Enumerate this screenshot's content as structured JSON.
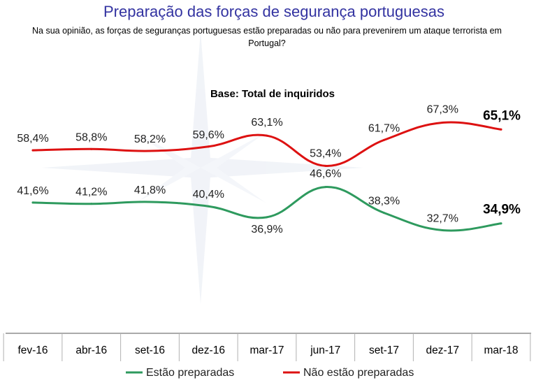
{
  "chart_data": {
    "type": "line",
    "title": "Preparação das forças de segurança portuguesas",
    "subtitle_line1": "Na sua opinião, as forças de seguranças portuguesas estão preparadas ou não para prevenirem um ataque terrorista em",
    "subtitle_line2": "Portugal?",
    "base_label": "Base: Total de inquiridos",
    "categories": [
      "fev-16",
      "abr-16",
      "set-16",
      "dez-16",
      "mar-17",
      "jun-17",
      "set-17",
      "dez-17",
      "mar-18"
    ],
    "ylim": [
      0,
      100
    ],
    "series": [
      {
        "name": "Estão preparadas",
        "color": "#2e9a5e",
        "values": [
          41.6,
          41.2,
          41.8,
          40.4,
          36.9,
          46.6,
          38.3,
          32.7,
          34.9
        ],
        "labels": [
          "41,6%",
          "41,2%",
          "41,8%",
          "40,4%",
          "36,9%",
          "46,6%",
          "38,3%",
          "32,7%",
          "34,9%"
        ]
      },
      {
        "name": "Não estão preparadas",
        "color": "#dd1111",
        "values": [
          58.4,
          58.8,
          58.2,
          59.6,
          63.1,
          53.4,
          61.7,
          67.3,
          65.1
        ],
        "labels": [
          "58,4%",
          "58,8%",
          "58,2%",
          "59,6%",
          "63,1%",
          "53,4%",
          "61,7%",
          "67,3%",
          "65,1%"
        ]
      }
    ],
    "legend_position": "bottom"
  }
}
